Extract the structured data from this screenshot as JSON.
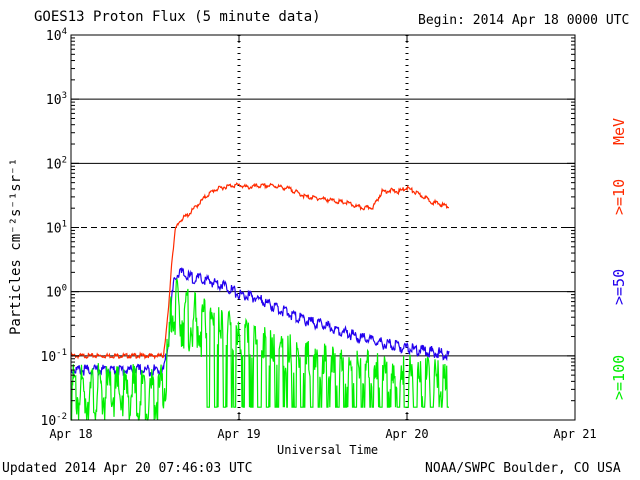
{
  "chart_data": {
    "type": "line",
    "title": "GOES13 Proton Flux (5 minute data)",
    "begin_label": "Begin: 2014 Apr 18 0000 UTC",
    "xlabel": "Universal Time",
    "ylabel": "Particles cm⁻²s⁻¹sr⁻¹",
    "y_scale": "log",
    "ylim": [
      0.01,
      10000
    ],
    "y_ticks": [
      {
        "value": 10000,
        "base": "10",
        "exp": "4"
      },
      {
        "value": 1000,
        "base": "10",
        "exp": "3"
      },
      {
        "value": 100,
        "base": "10",
        "exp": "2"
      },
      {
        "value": 10,
        "base": "10",
        "exp": "1"
      },
      {
        "value": 1,
        "base": "10",
        "exp": "0"
      },
      {
        "value": 0.1,
        "base": "10",
        "exp": "-1"
      },
      {
        "value": 0.01,
        "base": "10",
        "exp": "-2"
      }
    ],
    "xlim_days": [
      0,
      3
    ],
    "x_ticks": [
      {
        "day": 0,
        "label": "Apr 18"
      },
      {
        "day": 1,
        "label": "Apr 19"
      },
      {
        "day": 2,
        "label": "Apr 20"
      },
      {
        "day": 3,
        "label": "Apr 21"
      }
    ],
    "grid_lines_y": [
      1000,
      100,
      10,
      1,
      0.1
    ],
    "dashed_grid_y": [
      10
    ],
    "series": [
      {
        "name": ">=10 MeV",
        "color": "#ff2a00",
        "x": [
          0.0,
          0.1,
          0.2,
          0.3,
          0.4,
          0.5,
          0.55,
          0.58,
          0.6,
          0.62,
          0.65,
          0.7,
          0.75,
          0.8,
          0.85,
          0.9,
          0.95,
          1.0,
          1.05,
          1.1,
          1.2,
          1.3,
          1.4,
          1.5,
          1.6,
          1.65,
          1.7,
          1.75,
          1.8,
          1.85,
          1.9,
          1.95,
          2.0,
          2.05,
          2.1,
          2.15,
          2.2,
          2.25
        ],
        "y": [
          0.1,
          0.1,
          0.1,
          0.1,
          0.1,
          0.1,
          0.1,
          0.5,
          3,
          9,
          13,
          16,
          22,
          30,
          38,
          42,
          45,
          46,
          42,
          44,
          45,
          40,
          30,
          28,
          25,
          24,
          21,
          20,
          21,
          36,
          38,
          36,
          42,
          35,
          30,
          25,
          23,
          21
        ]
      },
      {
        "name": ">=50 MeV",
        "color": "#2200ee",
        "x": [
          0.0,
          0.1,
          0.2,
          0.3,
          0.4,
          0.5,
          0.55,
          0.58,
          0.6,
          0.62,
          0.65,
          0.7,
          0.8,
          0.9,
          0.95,
          1.0,
          1.1,
          1.2,
          1.3,
          1.4,
          1.5,
          1.6,
          1.7,
          1.8,
          1.9,
          2.0,
          2.1,
          2.2,
          2.25
        ],
        "y": [
          0.06,
          0.06,
          0.06,
          0.06,
          0.06,
          0.06,
          0.06,
          0.15,
          0.8,
          1.8,
          2.0,
          1.7,
          1.5,
          1.3,
          1.1,
          0.9,
          0.8,
          0.6,
          0.45,
          0.35,
          0.3,
          0.25,
          0.2,
          0.17,
          0.15,
          0.13,
          0.12,
          0.11,
          0.1
        ]
      },
      {
        "name": ">=100 MeV",
        "color": "#00ee00",
        "x": [
          0.0,
          0.1,
          0.2,
          0.3,
          0.4,
          0.5,
          0.55,
          0.58,
          0.6,
          0.62,
          0.65,
          0.7,
          0.8,
          0.9,
          1.0,
          1.1,
          1.2,
          1.3,
          1.4,
          1.5,
          1.6,
          1.7,
          1.8,
          1.9,
          2.0,
          2.1,
          2.2,
          2.25
        ],
        "y": [
          0.025,
          0.025,
          0.025,
          0.025,
          0.025,
          0.025,
          0.025,
          0.1,
          0.5,
          0.55,
          0.45,
          0.35,
          0.25,
          0.18,
          0.13,
          0.1,
          0.08,
          0.07,
          0.06,
          0.05,
          0.045,
          0.04,
          0.04,
          0.035,
          0.035,
          0.03,
          0.03,
          0.03
        ]
      }
    ],
    "legend": [
      {
        "text": "MeV",
        "color": "#ff2a00"
      },
      {
        "text": ">=10",
        "color": "#ff2a00"
      },
      {
        "text": ">=50",
        "color": "#2200ee"
      },
      {
        "text": ">=100",
        "color": "#00ee00"
      }
    ],
    "legend_placement": "right"
  },
  "footer": {
    "updated": "Updated 2014 Apr 20 07:46:03 UTC",
    "credit": "NOAA/SWPC Boulder, CO USA"
  }
}
